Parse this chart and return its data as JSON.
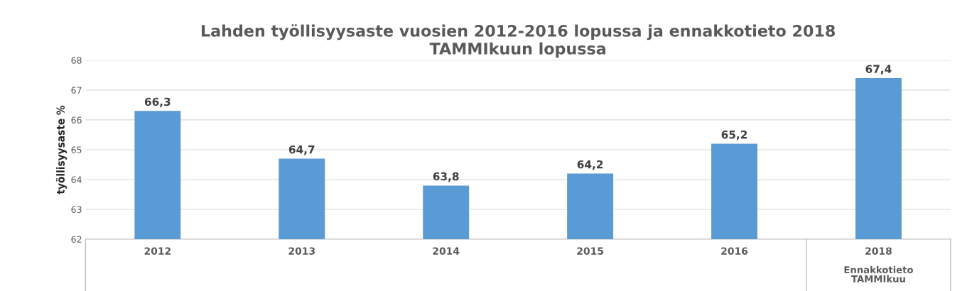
{
  "chart_data": {
    "type": "bar",
    "title": "Lahden työllisyysaste vuosien 2012-2016 lopussa ja ennakkotieto 2018\nTAMMIkuun lopussa",
    "ylabel": "työllisyysaste %",
    "categories": [
      "2012",
      "2013",
      "2014",
      "2015",
      "2016",
      "2018"
    ],
    "values": [
      66.3,
      64.7,
      63.8,
      64.2,
      65.2,
      67.4
    ],
    "value_labels": [
      "66,3",
      "64,7",
      "63,8",
      "64,2",
      "65,2",
      "67,4"
    ],
    "color": "#5b9bd5",
    "ylim": [
      62,
      68
    ],
    "yticks": [
      62,
      63,
      64,
      65,
      66,
      67,
      68
    ],
    "grid": "y",
    "legend": false,
    "annotations": [
      "Ennakkotieto\nTAMMIkuu"
    ]
  }
}
